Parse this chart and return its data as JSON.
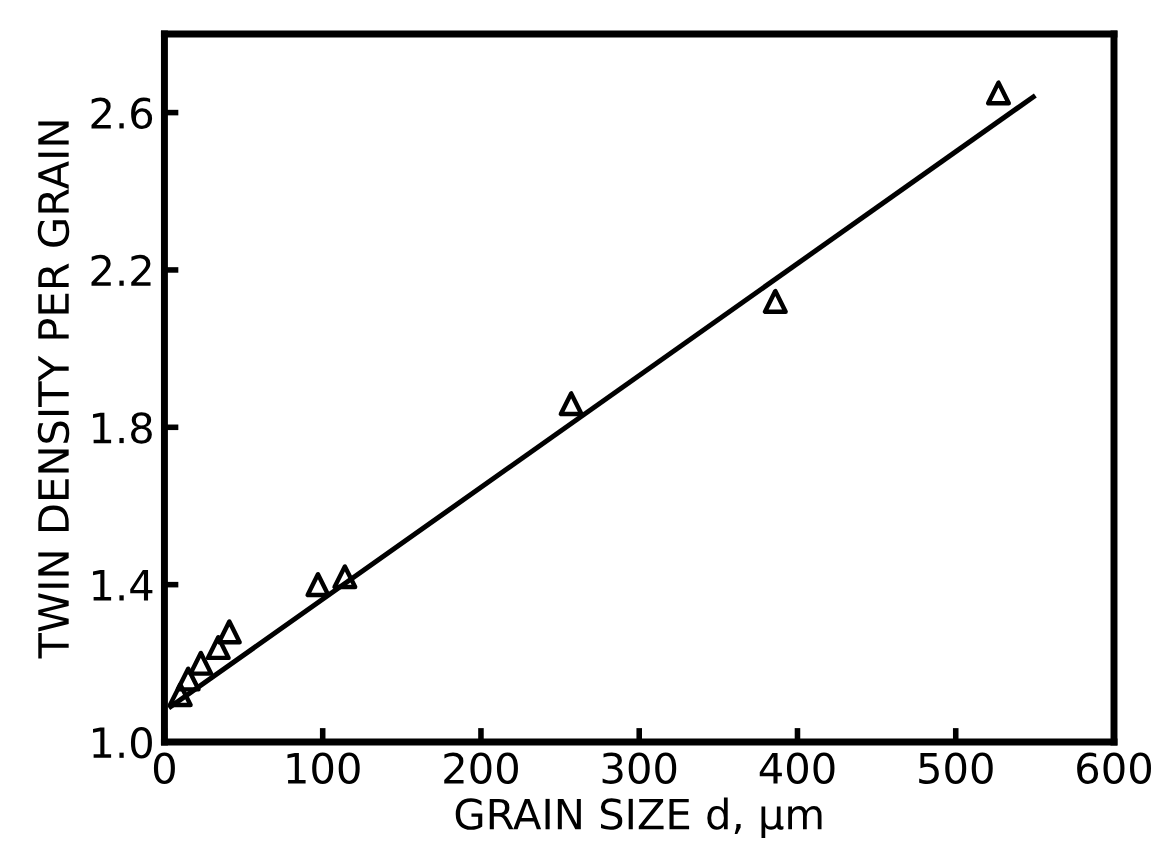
{
  "chart_data": {
    "type": "scatter",
    "xlabel": "GRAIN SIZE d, μm",
    "ylabel": "TWIN DENSITY PER GRAIN",
    "xlim": [
      0,
      600
    ],
    "xticks": [
      0,
      100,
      200,
      300,
      400,
      500,
      600
    ],
    "ylim": [
      1.0,
      2.8
    ],
    "yticks": [
      {
        "value": 1.0,
        "label": "1.0"
      },
      1.4,
      1.8,
      2.2,
      2.6
    ],
    "grid": false,
    "series": [
      {
        "marker": "triangle",
        "color": "#000000",
        "x": [
          10,
          15,
          23,
          34,
          41,
          97,
          114,
          257,
          386,
          527
        ],
        "values": [
          1.12,
          1.16,
          1.2,
          1.24,
          1.28,
          1.4,
          1.42,
          1.86,
          2.12,
          2.65
        ]
      },
      {
        "type": "line",
        "color": "#000000",
        "x": [
          4,
          549
        ],
        "values": [
          1.09,
          2.64
        ],
        "line_style": "solid"
      }
    ]
  }
}
